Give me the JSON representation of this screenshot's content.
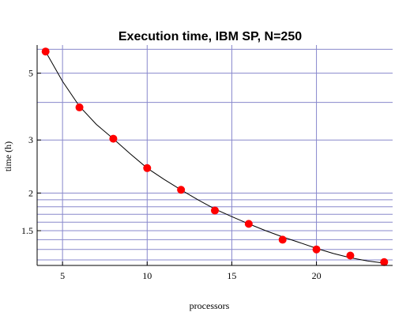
{
  "chart_data": {
    "type": "scatter",
    "title": "Execution time, IBM SP, N=250",
    "xlabel": "processors",
    "ylabel": "time (h)",
    "x_scale": "linear",
    "y_scale": "log",
    "xlim": [
      3.5,
      24.5
    ],
    "ylim": [
      1.15,
      6.2
    ],
    "x_ticks": [
      5,
      10,
      15,
      20
    ],
    "x_tick_labels": [
      "5",
      "10",
      "15",
      "20"
    ],
    "y_ticks": [
      1.5,
      2,
      3,
      5
    ],
    "y_tick_labels": [
      "1.5",
      "2",
      "3",
      "5"
    ],
    "grid": true,
    "x_gridlines": [
      5,
      10,
      15,
      20
    ],
    "y_gridlines": [
      1.2,
      1.3,
      1.4,
      1.5,
      1.6,
      1.7,
      1.8,
      1.9,
      2,
      3,
      4,
      5,
      6
    ],
    "colors": {
      "points": "#ff0000",
      "fit_line": "#000000",
      "grid": "#8888cc"
    },
    "series": [
      {
        "kind": "points",
        "x": [
          4,
          6,
          8,
          10,
          12,
          14,
          16,
          18,
          20,
          22,
          24
        ],
        "y": [
          5.9,
          3.85,
          3.03,
          2.42,
          2.05,
          1.75,
          1.58,
          1.4,
          1.3,
          1.24,
          1.18
        ]
      },
      {
        "kind": "fit-curve",
        "x": [
          4,
          5,
          6,
          7,
          8,
          9,
          10,
          11,
          12,
          13,
          14,
          15,
          16,
          17,
          18,
          19,
          20,
          21,
          22,
          23,
          24
        ],
        "y": [
          5.9,
          4.7,
          3.88,
          3.38,
          3.03,
          2.7,
          2.42,
          2.22,
          2.05,
          1.9,
          1.77,
          1.67,
          1.58,
          1.5,
          1.43,
          1.37,
          1.31,
          1.26,
          1.22,
          1.19,
          1.17
        ]
      }
    ]
  }
}
